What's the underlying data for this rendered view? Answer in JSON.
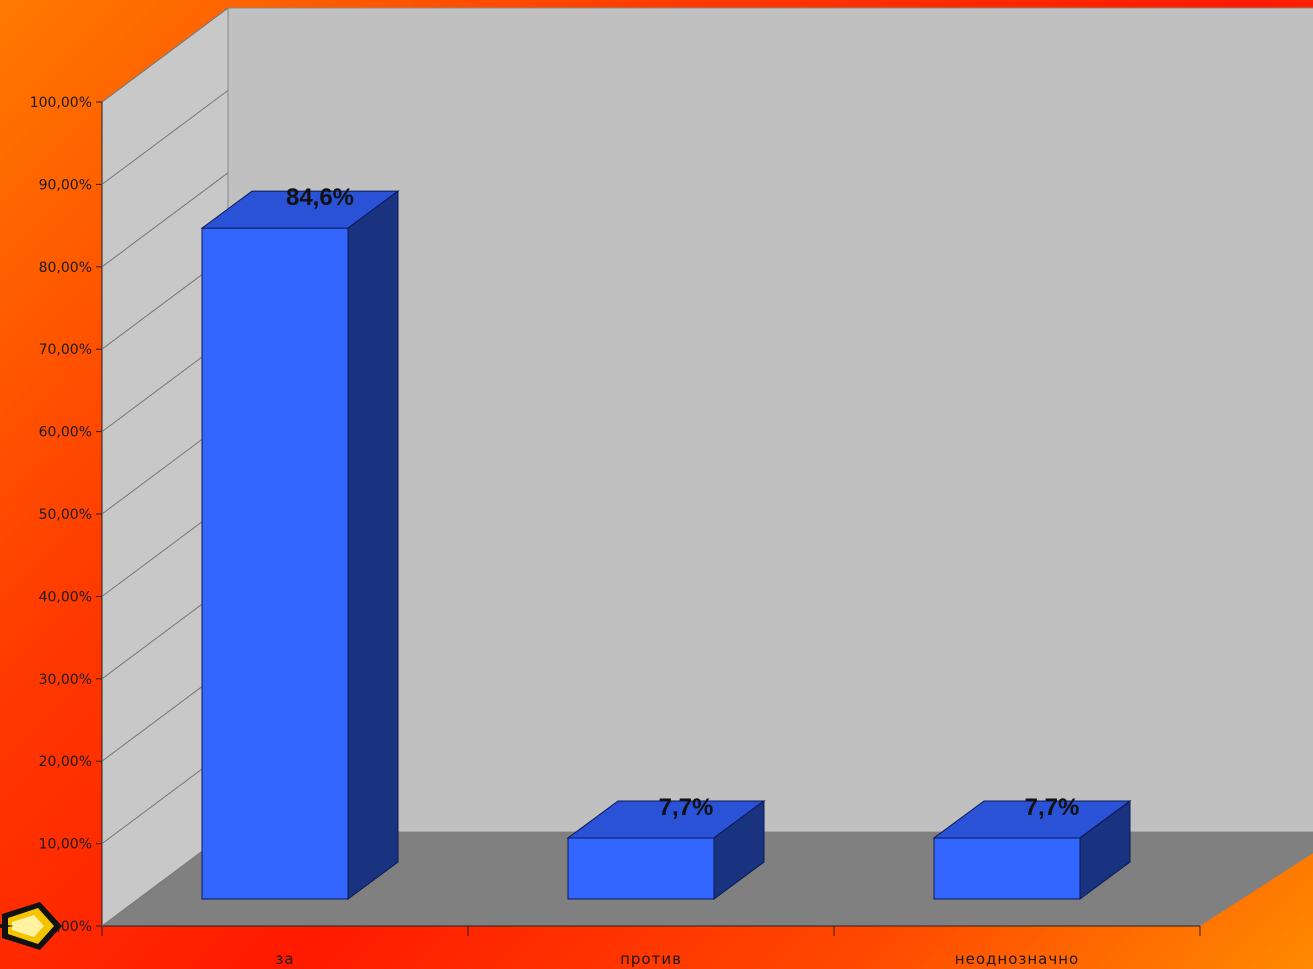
{
  "chart_data": {
    "type": "bar",
    "style": "3d-column",
    "categories": [
      "за",
      "против",
      "неоднозначно"
    ],
    "values": [
      84.6,
      7.7,
      7.7
    ],
    "data_labels": [
      "84,6%",
      "7,7%",
      "7,7%"
    ],
    "yticks": [
      "0,00%",
      "10,00%",
      "20,00%",
      "30,00%",
      "40,00%",
      "50,00%",
      "60,00%",
      "70,00%",
      "80,00%",
      "90,00%",
      "100,00%"
    ],
    "ylim": [
      0,
      100
    ],
    "grid": false,
    "legend": "none",
    "colors": {
      "bar_front": "#3366ff",
      "bar_top": "#2952d6",
      "bar_side": "#1a3380",
      "back_wall": "#c0c0c0",
      "side_wall": "#c8c8c8",
      "floor": "#808080"
    }
  },
  "nav": {
    "icon": "pencil-arrow-icon"
  }
}
